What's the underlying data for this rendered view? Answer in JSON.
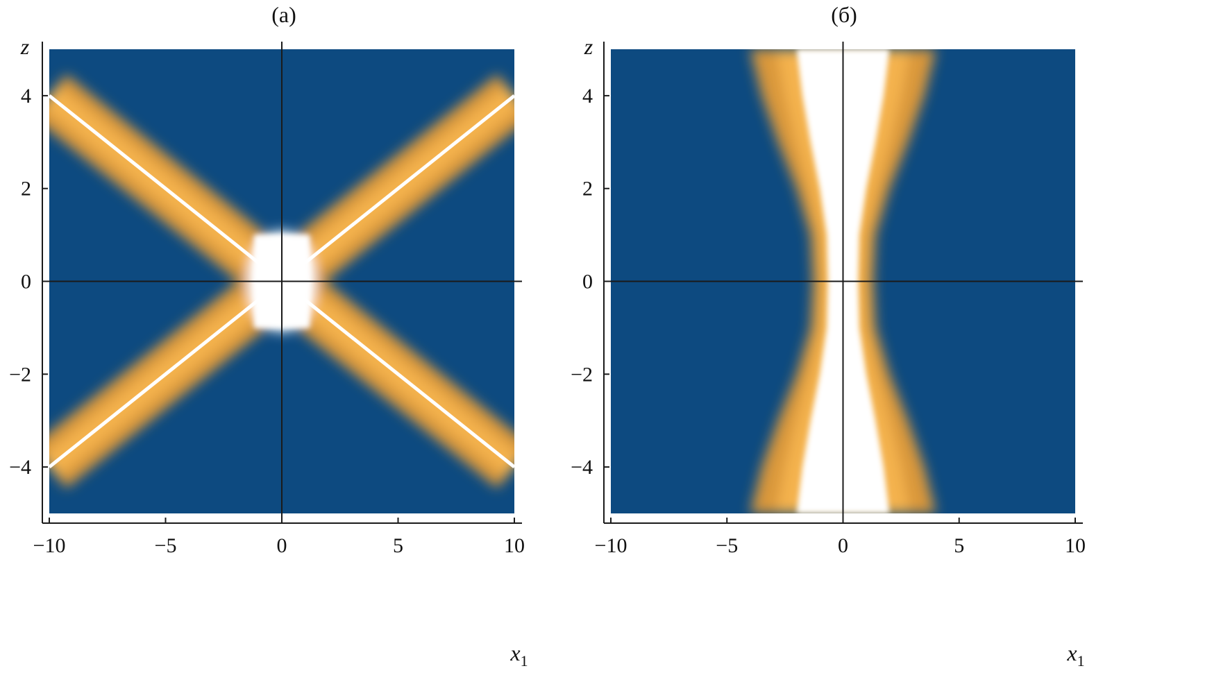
{
  "colors": {
    "background": "#0d4a80",
    "band_outer": "#d9973a",
    "band_inner": "#f4b24d",
    "core": "#ffffff",
    "axis": "#1a1a1a"
  },
  "chart_data": [
    {
      "type": "heatmap",
      "title": "(a)",
      "xlabel": "x",
      "xlabel_sub": "1",
      "ylabel": "z",
      "xlim": [
        -10,
        10
      ],
      "ylim": [
        -5,
        5
      ],
      "xticks": [
        -10,
        -5,
        0,
        5,
        10
      ],
      "xtick_labels": [
        "−10",
        "−5",
        "0",
        "5",
        "10"
      ],
      "yticks": [
        -4,
        -2,
        0,
        2,
        4
      ],
      "ytick_labels": [
        "−4",
        "−2",
        "0",
        "2",
        "4"
      ],
      "grid": false,
      "pattern": "x-shaped bright bands along z = ±0.4·x1 with a bright core around the origin",
      "ridge_lines": [
        {
          "x": [
            -10,
            -0.5
          ],
          "y": [
            4,
            0.2
          ]
        },
        {
          "x": [
            0.5,
            10
          ],
          "y": [
            0.2,
            4
          ]
        },
        {
          "x": [
            -10,
            -0.5
          ],
          "y": [
            -4,
            -0.2
          ]
        },
        {
          "x": [
            0.5,
            10
          ],
          "y": [
            -0.2,
            -4
          ]
        }
      ],
      "core": {
        "x_range": [
          -1.2,
          1.2
        ],
        "z_range": [
          -1.0,
          1.0
        ]
      }
    },
    {
      "type": "heatmap",
      "title": "(б)",
      "xlabel": "x",
      "xlabel_sub": "1",
      "ylabel": "z",
      "xlim": [
        -10,
        10
      ],
      "ylim": [
        -5,
        5
      ],
      "xticks": [
        -10,
        -5,
        0,
        5,
        10
      ],
      "xtick_labels": [
        "−10",
        "−5",
        "0",
        "5",
        "10"
      ],
      "yticks": [
        -4,
        -2,
        0,
        2,
        4
      ],
      "ytick_labels": [
        "−4",
        "−2",
        "0",
        "2",
        "4"
      ],
      "grid": false,
      "pattern": "hourglass-shaped bright region around x1 = 0, widest at z = ±5 and narrowest at z = 0",
      "envelope": {
        "z": [
          -5,
          -4,
          -3,
          -2,
          -1,
          0,
          1,
          2,
          3,
          4,
          5
        ],
        "half_width": [
          4.0,
          3.5,
          2.8,
          2.0,
          1.4,
          1.3,
          1.4,
          2.0,
          2.8,
          3.5,
          4.0
        ]
      },
      "center_gap_half_width": 0.3
    }
  ]
}
